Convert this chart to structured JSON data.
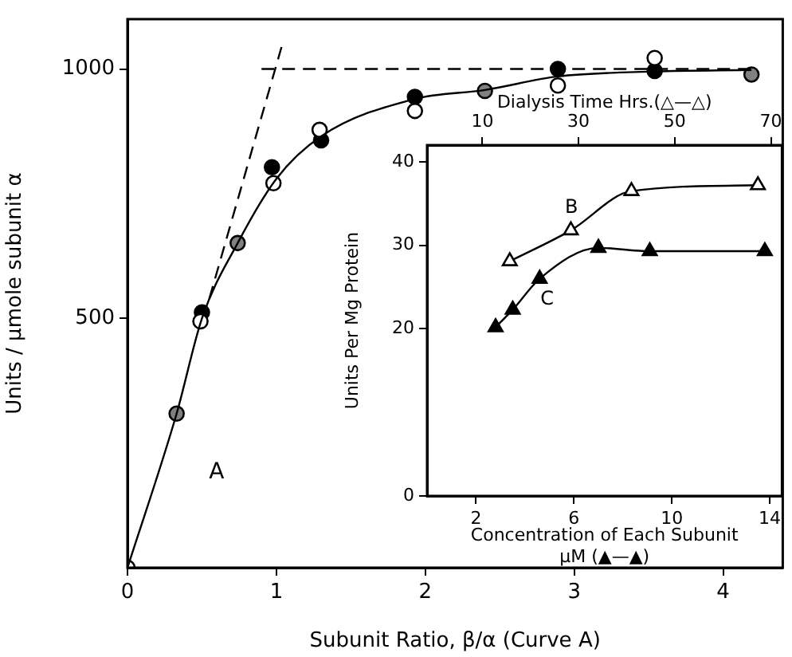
{
  "chart_data": [
    {
      "type": "scatter",
      "xlabel": "Subunit Ratio, β/α (Curve A)",
      "ylabel": "Units / μmole subunit α",
      "xlim": [
        0,
        4.4
      ],
      "ylim": [
        0,
        1100
      ],
      "xticks": [
        0,
        1,
        2,
        3,
        4
      ],
      "yticks": [
        500,
        1000
      ],
      "grid": false,
      "legend": false,
      "annotations": [
        "A"
      ],
      "series": [
        {
          "type": "line",
          "color": "#000000",
          "marker": "none",
          "x": [
            0,
            0.33,
            0.5,
            0.74,
            1,
            1.3,
            1.93,
            2.4,
            2.89,
            3.54,
            4.19
          ],
          "values": [
            0,
            309,
            500,
            651,
            780,
            865,
            940,
            958,
            985,
            995,
            998
          ]
        },
        {
          "type": "line",
          "color": "#000000",
          "marker": "none",
          "line_style": "dashed",
          "x": [
            0.55,
            1.04
          ],
          "values": [
            540,
            1050
          ]
        },
        {
          "type": "line",
          "color": "#000000",
          "marker": "none",
          "line_style": "dashed",
          "x": [
            0.9,
            4.2
          ],
          "values": [
            1000,
            1000
          ]
        },
        {
          "color": "#ffffff",
          "marker": "circle",
          "x": [
            0,
            0.49,
            0.98,
            1.29,
            1.93,
            2.89,
            3.54
          ],
          "values": [
            0,
            494,
            771,
            878,
            916,
            967,
            1022
          ]
        },
        {
          "color": "#000000",
          "marker": "circle",
          "x": [
            0.5,
            0.97,
            1.3,
            1.93,
            2.89,
            3.54
          ],
          "values": [
            512,
            803,
            857,
            944,
            1000,
            996
          ]
        },
        {
          "color": "#808080",
          "marker": "circle",
          "x": [
            0.33,
            0.74,
            2.4,
            4.19
          ],
          "values": [
            309,
            651,
            956,
            989
          ]
        }
      ]
    },
    {
      "type": "line",
      "xlabel": "Concentration of Each Subunit\nμM (▲—▲)",
      "x2label": "Dialysis Time Hrs.(△—△)",
      "ylabel": "Units Per Mg Protein",
      "xlim": [
        0,
        14.5
      ],
      "xticks": [
        2,
        6,
        10,
        14
      ],
      "x2lim": [
        -1.5,
        72.3
      ],
      "x2ticks": [
        10,
        30,
        50,
        70
      ],
      "ylim": [
        0,
        42
      ],
      "yticks": [
        0,
        20,
        30,
        40
      ],
      "grid": false,
      "legend": false,
      "annotations": [
        "B",
        "C"
      ],
      "series": [
        {
          "color": "#ffffff",
          "marker": "triangle",
          "axis": "x2",
          "x": [
            15.7,
            28.4,
            41,
            67.3
          ],
          "values": [
            28.1,
            31.8,
            36.5,
            37.2
          ]
        },
        {
          "color": "#000000",
          "marker": "triangle",
          "x": [
            2.8,
            3.5,
            4.6,
            7.0,
            9.1,
            13.8
          ],
          "values": [
            20.2,
            22.3,
            26,
            29.7,
            29.3,
            29.3
          ]
        }
      ]
    }
  ]
}
